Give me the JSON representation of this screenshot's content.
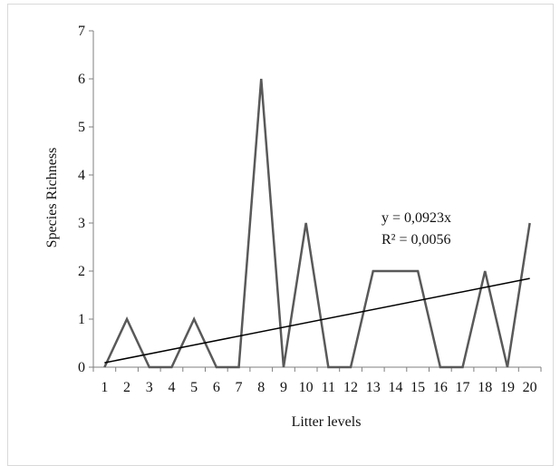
{
  "chart_data": {
    "type": "line",
    "title": "",
    "xlabel": "Litter levels",
    "ylabel": "Species Richness",
    "categories": [
      "1",
      "2",
      "3",
      "4",
      "5",
      "6",
      "7",
      "8",
      "9",
      "10",
      "11",
      "12",
      "13",
      "14",
      "15",
      "16",
      "17",
      "18",
      "19",
      "20"
    ],
    "series": [
      {
        "values": [
          0,
          1,
          0,
          0,
          1,
          0,
          0,
          6,
          0,
          3,
          0,
          0,
          2,
          2,
          2,
          0,
          0,
          2,
          0,
          3
        ]
      }
    ],
    "yticks": [
      0,
      1,
      2,
      3,
      4,
      5,
      6,
      7
    ],
    "ylim": [
      0,
      7
    ],
    "grid": false,
    "legend": "none",
    "trendline": {
      "type": "linear",
      "slope": 0.0923,
      "equation": "y = 0,0923x",
      "r2_label": "R² = 0,0056"
    },
    "colors": {
      "series": "#595959",
      "trendline": "#000000",
      "axis": "#7f7f7f"
    }
  }
}
